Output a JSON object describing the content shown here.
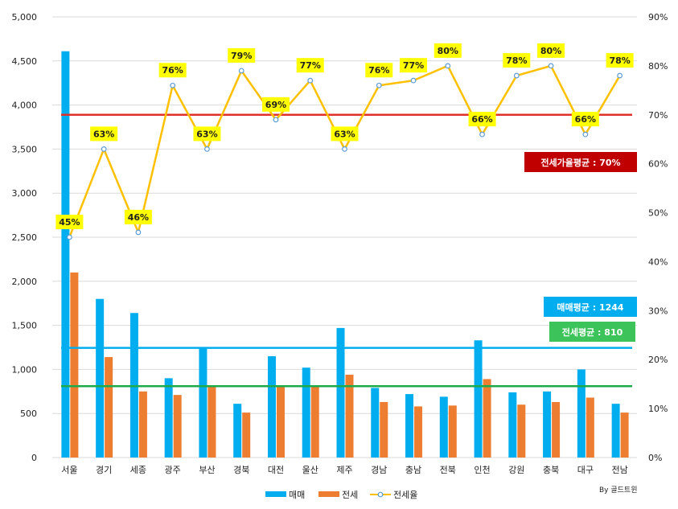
{
  "chart_data": {
    "type": "bar",
    "categories": [
      "서울",
      "경기",
      "세종",
      "광주",
      "부산",
      "경북",
      "대전",
      "울산",
      "제주",
      "경남",
      "충남",
      "전북",
      "인천",
      "강원",
      "충북",
      "대구",
      "전남"
    ],
    "series": [
      {
        "name": "매매",
        "type": "bar",
        "axis": "left",
        "color": "#00AEEF",
        "values": [
          4610,
          1800,
          1640,
          900,
          1240,
          610,
          1150,
          1020,
          1470,
          790,
          720,
          690,
          1330,
          740,
          750,
          1000,
          610
        ]
      },
      {
        "name": "전세",
        "type": "bar",
        "axis": "left",
        "color": "#ED7D31",
        "values": [
          2100,
          1140,
          750,
          710,
          810,
          510,
          800,
          820,
          940,
          630,
          580,
          590,
          890,
          600,
          630,
          680,
          510
        ]
      },
      {
        "name": "전세율",
        "type": "line",
        "axis": "right",
        "color": "#FFC000",
        "values": [
          45,
          63,
          46,
          76,
          63,
          79,
          69,
          77,
          63,
          76,
          77,
          80,
          66,
          78,
          80,
          66,
          78
        ],
        "labels": [
          "45%",
          "63%",
          "46%",
          "76%",
          "63%",
          "79%",
          "69%",
          "77%",
          "63%",
          "76%",
          "77%",
          "80%",
          "66%",
          "78%",
          "80%",
          "66%",
          "78%"
        ]
      }
    ],
    "left_axis": {
      "min": 0,
      "max": 5000,
      "step": 500,
      "ticks": [
        "0",
        "500",
        "1,000",
        "1,500",
        "2,000",
        "2,500",
        "3,000",
        "3,500",
        "4,000",
        "4,500",
        "5,000"
      ]
    },
    "right_axis": {
      "min": 0,
      "max": 90,
      "step": 10,
      "ticks": [
        "0%",
        "10%",
        "20%",
        "30%",
        "40%",
        "50%",
        "60%",
        "70%",
        "80%",
        "90%"
      ]
    },
    "reference_lines": [
      {
        "name": "매매평균",
        "value": 1244,
        "axis": "left",
        "color": "#00AEEF",
        "label": "매매평균 : 1244",
        "box_color": "#00AEEF"
      },
      {
        "name": "전세평균",
        "value": 810,
        "axis": "left",
        "color": "#1DAA4B",
        "label": "전세평균 : 810",
        "box_color": "#3CC35A"
      },
      {
        "name": "전세가율평균",
        "value": 70,
        "axis": "right",
        "color": "#E0302C",
        "label": "전세가율평균 : 70%",
        "box_color": "#C00000"
      }
    ],
    "legend": [
      {
        "name": "매매",
        "color": "#00AEEF",
        "kind": "bar"
      },
      {
        "name": "전세",
        "color": "#ED7D31",
        "kind": "bar"
      },
      {
        "name": "전세율",
        "color": "#FFC000",
        "kind": "line"
      }
    ],
    "grid": true,
    "legend_position": "bottom-center",
    "credit": "By 골드트윈"
  }
}
